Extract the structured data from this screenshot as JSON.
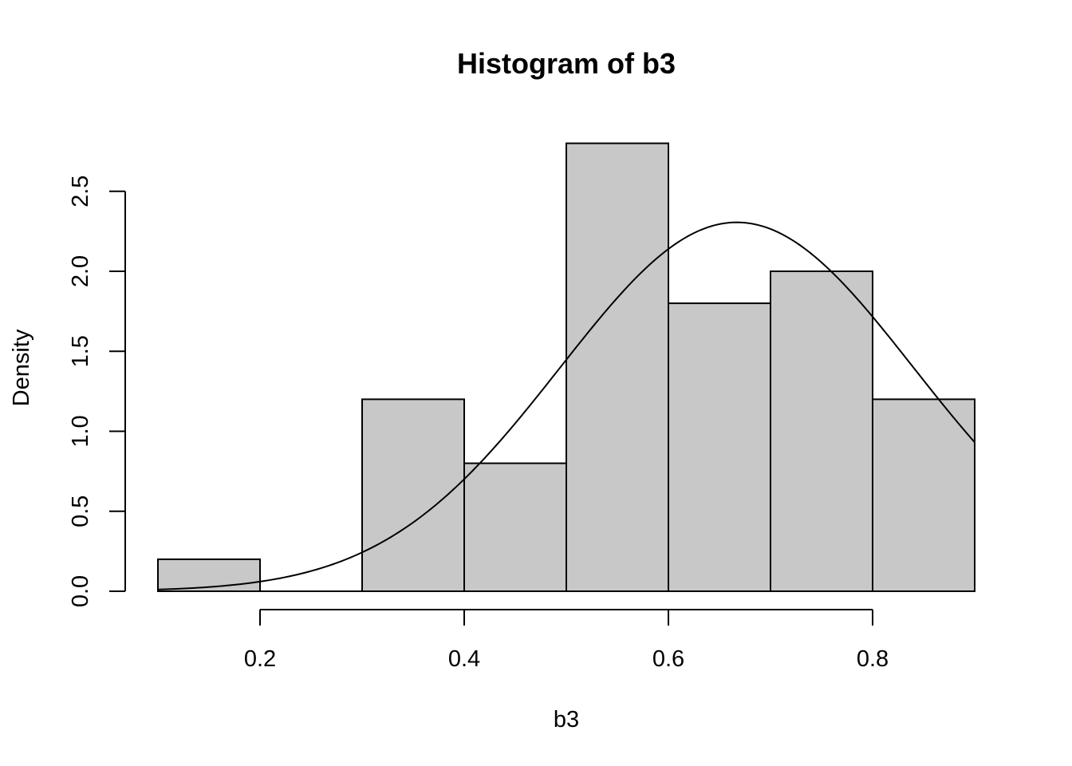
{
  "chart_data": {
    "type": "bar",
    "title": "Histogram of b3",
    "xlabel": "b3",
    "ylabel": "Density",
    "bins": [
      {
        "from": 0.1,
        "to": 0.2,
        "density": 0.2
      },
      {
        "from": 0.2,
        "to": 0.3,
        "density": 0.0
      },
      {
        "from": 0.3,
        "to": 0.4,
        "density": 1.2
      },
      {
        "from": 0.4,
        "to": 0.5,
        "density": 0.8
      },
      {
        "from": 0.5,
        "to": 0.6,
        "density": 2.8
      },
      {
        "from": 0.6,
        "to": 0.7,
        "density": 1.8
      },
      {
        "from": 0.7,
        "to": 0.8,
        "density": 2.0
      },
      {
        "from": 0.8,
        "to": 0.9,
        "density": 1.2
      }
    ],
    "curve": {
      "type": "normal-density",
      "mean": 0.667,
      "sd": 0.173
    },
    "x_ticks": [
      "0.2",
      "0.4",
      "0.6",
      "0.8"
    ],
    "y_ticks": [
      "0.0",
      "0.5",
      "1.0",
      "1.5",
      "2.0",
      "2.5"
    ],
    "xlim": [
      0.1,
      0.9
    ],
    "ylim": [
      0,
      2.5
    ],
    "grid": false,
    "colors": {
      "bar_fill": "#c8c8c8",
      "stroke": "#000000"
    }
  }
}
